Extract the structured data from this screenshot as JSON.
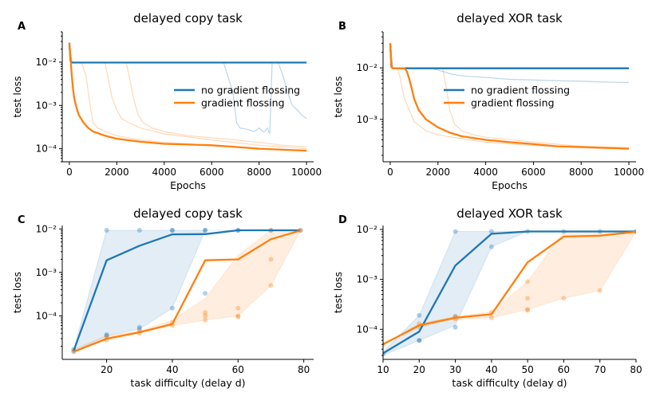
{
  "colors": {
    "blue": "#1f77b4",
    "orange": "#ff7f0e"
  },
  "chart_data": [
    {
      "panel": "A",
      "type": "line",
      "title": "delayed copy task",
      "xlabel": "Epochs",
      "ylabel": "test loss",
      "yscale": "log",
      "xlim": [
        -300,
        10300
      ],
      "ylim": [
        5e-05,
        0.05
      ],
      "xticks": [
        0,
        2000,
        4000,
        6000,
        8000,
        10000
      ],
      "xtick_labels": [
        "0",
        "2000",
        "4000",
        "6000",
        "8000",
        "10000"
      ],
      "yticks": [
        0.0001,
        0.001,
        0.01
      ],
      "ytick_labels": [
        "10⁻⁴",
        "10⁻³",
        "10⁻²"
      ],
      "legend": {
        "position": "right",
        "entries": [
          "no gradient flossing",
          "gradient flossing"
        ]
      },
      "series": [
        {
          "name": "no gradient flossing",
          "color": "blue",
          "role": "mean",
          "x": [
            0,
            50,
            100,
            2000,
            4000,
            6000,
            8000,
            10000
          ],
          "y": [
            0.028,
            0.0105,
            0.0098,
            0.0098,
            0.0098,
            0.0098,
            0.0098,
            0.0098
          ]
        },
        {
          "name": "no gradient flossing",
          "color": "blue",
          "role": "single run",
          "x": [
            0,
            100,
            6500,
            6900,
            7050,
            7200,
            7500,
            7800,
            8000,
            8200,
            8350,
            8450,
            8550,
            8650,
            10000
          ],
          "y": [
            0.025,
            0.0098,
            0.0098,
            0.002,
            0.0004,
            0.0003,
            0.00028,
            0.00025,
            0.0003,
            0.00024,
            0.0003,
            0.00022,
            0.0098,
            0.0098,
            0.0098
          ]
        },
        {
          "name": "no gradient flossing",
          "color": "blue",
          "role": "single run",
          "x": [
            0,
            100,
            8800,
            9000,
            9200,
            9400,
            9600,
            9800,
            10000
          ],
          "y": [
            0.025,
            0.0098,
            0.0098,
            0.005,
            0.002,
            0.001,
            0.0008,
            0.0006,
            0.0005
          ]
        },
        {
          "name": "gradient flossing",
          "color": "orange",
          "role": "mean",
          "x": [
            0,
            50,
            100,
            150,
            200,
            300,
            400,
            600,
            800,
            1000,
            1500,
            2000,
            3000,
            4000,
            5000,
            6000,
            7000,
            8000,
            9000,
            10000
          ],
          "y": [
            0.028,
            0.012,
            0.005,
            0.0025,
            0.0015,
            0.0009,
            0.0006,
            0.0004,
            0.0003,
            0.00025,
            0.0002,
            0.00017,
            0.000145,
            0.00013,
            0.000125,
            0.00012,
            0.00011,
            0.0001,
            9.5e-05,
            9e-05
          ]
        },
        {
          "name": "gradient flossing",
          "color": "orange",
          "role": "single run",
          "x": [
            0,
            100,
            500,
            700,
            800,
            900,
            1000,
            1200,
            1500,
            2000,
            3000,
            4000,
            6000,
            8000,
            10000
          ],
          "y": [
            0.025,
            0.0098,
            0.0098,
            0.005,
            0.002,
            0.0008,
            0.0004,
            0.0003,
            0.00025,
            0.0002,
            0.00016,
            0.00014,
            0.00012,
            0.0001,
            9e-05
          ]
        },
        {
          "name": "gradient flossing",
          "color": "orange",
          "role": "single run",
          "x": [
            0,
            100,
            1500,
            1650,
            1800,
            2000,
            2200,
            2500,
            3000,
            4000,
            6000,
            8000,
            10000
          ],
          "y": [
            0.025,
            0.0098,
            0.0098,
            0.004,
            0.0015,
            0.0008,
            0.0005,
            0.0004,
            0.0003,
            0.00022,
            0.00016,
            0.00012,
            0.0001
          ]
        },
        {
          "name": "gradient flossing",
          "color": "orange",
          "role": "single run",
          "x": [
            0,
            100,
            2400,
            2550,
            2700,
            2900,
            3100,
            3500,
            4000,
            5000,
            6000,
            7000,
            8000,
            9000,
            10000
          ],
          "y": [
            0.025,
            0.0098,
            0.0098,
            0.004,
            0.0015,
            0.0006,
            0.0004,
            0.0003,
            0.00025,
            0.0002,
            0.00018,
            0.00016,
            0.00014,
            0.00012,
            0.00011
          ]
        }
      ]
    },
    {
      "panel": "B",
      "type": "line",
      "title": "delayed XOR task",
      "xlabel": "Epochs",
      "ylabel": "test loss",
      "yscale": "log",
      "xlim": [
        -300,
        10300
      ],
      "ylim": [
        0.00015,
        0.05
      ],
      "xticks": [
        0,
        2000,
        4000,
        6000,
        8000,
        10000
      ],
      "xtick_labels": [
        "0",
        "2000",
        "4000",
        "6000",
        "8000",
        "10000"
      ],
      "yticks": [
        0.001,
        0.01
      ],
      "ytick_labels": [
        "10⁻³",
        "10⁻²"
      ],
      "legend": {
        "position": "right",
        "entries": [
          "no gradient flossing",
          "gradient flossing"
        ]
      },
      "series": [
        {
          "name": "no gradient flossing",
          "color": "blue",
          "role": "mean",
          "x": [
            0,
            50,
            100,
            2000,
            4000,
            6000,
            8000,
            10000
          ],
          "y": [
            0.03,
            0.0105,
            0.0098,
            0.0098,
            0.0098,
            0.0098,
            0.0098,
            0.0098
          ]
        },
        {
          "name": "no gradient flossing",
          "color": "blue",
          "role": "single run",
          "x": [
            0,
            100,
            1000,
            1800,
            2200,
            2600,
            3000,
            4000,
            5000,
            6000,
            7000,
            8000,
            9000,
            10000
          ],
          "y": [
            0.025,
            0.0098,
            0.0098,
            0.0096,
            0.0085,
            0.0075,
            0.007,
            0.0065,
            0.006,
            0.0058,
            0.0056,
            0.0055,
            0.0053,
            0.0052
          ]
        },
        {
          "name": "gradient flossing",
          "color": "orange",
          "role": "mean",
          "x": [
            0,
            50,
            100,
            600,
            700,
            800,
            900,
            1000,
            1200,
            1500,
            2000,
            2500,
            3000,
            4000,
            5000,
            6000,
            7000,
            8000,
            9000,
            10000
          ],
          "y": [
            0.03,
            0.0105,
            0.0098,
            0.0098,
            0.0085,
            0.006,
            0.004,
            0.0025,
            0.0015,
            0.001,
            0.0007,
            0.00055,
            0.00047,
            0.0004,
            0.00036,
            0.00033,
            0.0003,
            0.00029,
            0.00028,
            0.00027
          ]
        },
        {
          "name": "gradient flossing",
          "color": "orange",
          "role": "single run",
          "x": [
            0,
            100,
            300,
            400,
            500,
            600,
            800,
            1000,
            1500,
            2000,
            3000,
            4000,
            6000,
            8000,
            10000
          ],
          "y": [
            0.025,
            0.0098,
            0.0098,
            0.007,
            0.004,
            0.0025,
            0.0015,
            0.0009,
            0.0006,
            0.0005,
            0.00042,
            0.00036,
            0.00031,
            0.00028,
            0.00026
          ]
        },
        {
          "name": "gradient flossing",
          "color": "orange",
          "role": "single run",
          "x": [
            0,
            100,
            2200,
            2350,
            2500,
            2700,
            3000,
            3500,
            4000,
            6000,
            8000,
            10000
          ],
          "y": [
            0.025,
            0.0098,
            0.0098,
            0.004,
            0.0015,
            0.0008,
            0.0006,
            0.0005,
            0.00045,
            0.00036,
            0.0003,
            0.00028
          ]
        }
      ]
    },
    {
      "panel": "C",
      "type": "line",
      "title": "delayed copy task",
      "xlabel": "task difficulty (delay d)",
      "ylabel": "test loss",
      "yscale": "log",
      "xlim": [
        6.5,
        83
      ],
      "ylim": [
        1e-05,
        0.012
      ],
      "xticks": [
        20,
        40,
        60,
        80
      ],
      "xtick_labels": [
        "20",
        "40",
        "60",
        "80"
      ],
      "yticks": [
        0.0001,
        0.001,
        0.01
      ],
      "ytick_labels": [
        "10⁻⁴",
        "10⁻³",
        "10⁻²"
      ],
      "series": [
        {
          "name": "no gradient flossing",
          "color": "blue",
          "role": "median",
          "x": [
            10,
            20,
            30,
            40,
            50,
            60,
            70,
            79
          ],
          "y": [
            1.6e-05,
            0.0019,
            0.0041,
            0.0075,
            0.0076,
            0.0093,
            0.0093,
            0.0093
          ]
        },
        {
          "name": "no gradient flossing",
          "color": "blue",
          "role": "band",
          "x": [
            10,
            20,
            30,
            40,
            50,
            60,
            70,
            79
          ],
          "lower": [
            1.5e-05,
            3.5e-05,
            5e-05,
            0.00015,
            0.0093,
            0.0093,
            0.0093,
            0.0093
          ],
          "upper": [
            1.7e-05,
            0.0093,
            0.0093,
            0.0093,
            0.0093,
            0.0093,
            0.0093,
            0.0093
          ]
        },
        {
          "name": "no gradient flossing",
          "color": "blue",
          "role": "runs",
          "x": [
            10,
            10,
            20,
            20,
            20,
            30,
            30,
            30,
            40,
            40,
            40,
            50,
            50,
            50,
            60,
            60,
            70,
            79
          ],
          "y": [
            1.5e-05,
            1.7e-05,
            0.0093,
            3.5e-05,
            3.7e-05,
            0.0093,
            5.5e-05,
            5e-05,
            0.0093,
            0.00015,
            0.0093,
            0.0093,
            0.00033,
            0.0093,
            0.0093,
            0.0093,
            0.0093,
            0.0093
          ]
        },
        {
          "name": "gradient flossing",
          "color": "orange",
          "role": "median",
          "x": [
            10,
            20,
            30,
            40,
            50,
            60,
            70,
            79
          ],
          "y": [
            1.5e-05,
            3e-05,
            4.2e-05,
            6.5e-05,
            0.0019,
            0.002,
            0.0058,
            0.0092
          ]
        },
        {
          "name": "gradient flossing",
          "color": "orange",
          "role": "band",
          "x": [
            10,
            20,
            30,
            40,
            50,
            60,
            70,
            79
          ],
          "lower": [
            1.5e-05,
            2.8e-05,
            4e-05,
            6e-05,
            8e-05,
            0.0001,
            0.0005,
            0.0092
          ],
          "upper": [
            1.7e-05,
            3.5e-05,
            4.5e-05,
            8e-05,
            0.00025,
            0.0025,
            0.0093,
            0.0093
          ]
        },
        {
          "name": "gradient flossing",
          "color": "orange",
          "role": "runs",
          "x": [
            10,
            20,
            20,
            30,
            30,
            40,
            40,
            50,
            50,
            50,
            60,
            60,
            60,
            70,
            70,
            70,
            79
          ],
          "y": [
            1.6e-05,
            2.8e-05,
            3.2e-05,
            4e-05,
            4.5e-05,
            6e-05,
            7e-05,
            0.0001,
            0.00012,
            8e-05,
            0.00015,
            0.0001,
            9.5e-05,
            0.0093,
            0.002,
            0.0005,
            0.0092
          ]
        }
      ]
    },
    {
      "panel": "D",
      "type": "line",
      "title": "delayed XOR task",
      "xlabel": "task difficulty (delay d)",
      "ylabel": "test loss",
      "yscale": "log",
      "xlim": [
        10,
        80
      ],
      "ylim": [
        2.5e-05,
        0.012
      ],
      "xticks": [
        10,
        20,
        30,
        40,
        50,
        60,
        70,
        80
      ],
      "xtick_labels": [
        "10",
        "20",
        "30",
        "40",
        "50",
        "60",
        "70",
        "80"
      ],
      "yticks": [
        0.0001,
        0.001,
        0.01
      ],
      "ytick_labels": [
        "10⁻⁴",
        "10⁻³",
        "10⁻²"
      ],
      "series": [
        {
          "name": "no gradient flossing",
          "color": "blue",
          "role": "median",
          "x": [
            10,
            20,
            30,
            40,
            50,
            60,
            70,
            80
          ],
          "y": [
            3.3e-05,
            9e-05,
            0.0019,
            0.0082,
            0.0091,
            0.0091,
            0.0091,
            0.0091
          ]
        },
        {
          "name": "no gradient flossing",
          "color": "blue",
          "role": "band",
          "x": [
            10,
            20,
            30,
            40,
            50,
            60,
            70,
            80
          ],
          "lower": [
            3e-05,
            6e-05,
            0.00012,
            0.0045,
            0.0091,
            0.0091,
            0.0091,
            0.0091
          ],
          "upper": [
            3.5e-05,
            0.00019,
            0.0091,
            0.0091,
            0.0091,
            0.0091,
            0.0091,
            0.0091
          ]
        },
        {
          "name": "no gradient flossing",
          "color": "blue",
          "role": "runs",
          "x": [
            10,
            20,
            20,
            20,
            30,
            30,
            30,
            40,
            40,
            50,
            60,
            70,
            80
          ],
          "y": [
            3.2e-05,
            0.00019,
            6e-05,
            6e-05,
            0.0091,
            0.00018,
            0.00011,
            0.0091,
            0.0045,
            0.0091,
            0.0091,
            0.0091,
            0.0091
          ]
        },
        {
          "name": "gradient flossing",
          "color": "orange",
          "role": "median",
          "x": [
            10,
            20,
            30,
            40,
            50,
            60,
            70,
            80
          ],
          "y": [
            5e-05,
            0.00012,
            0.00017,
            0.0002,
            0.0022,
            0.0072,
            0.0075,
            0.009
          ]
        },
        {
          "name": "gradient flossing",
          "color": "orange",
          "role": "band",
          "x": [
            10,
            20,
            30,
            40,
            50,
            60,
            70,
            80
          ],
          "lower": [
            5e-05,
            0.00011,
            0.00016,
            0.00017,
            0.00025,
            0.00042,
            0.0006,
            0.009
          ],
          "upper": [
            5e-05,
            0.00013,
            0.00018,
            0.00022,
            0.0009,
            0.0091,
            0.0091,
            0.0091
          ]
        },
        {
          "name": "gradient flossing",
          "color": "orange",
          "role": "runs",
          "x": [
            10,
            20,
            20,
            30,
            30,
            40,
            40,
            50,
            50,
            50,
            50,
            60,
            70,
            80
          ],
          "y": [
            5e-05,
            0.00011,
            0.00013,
            0.00016,
            0.00018,
            0.00017,
            0.00022,
            0.0009,
            0.00042,
            0.00025,
            0.00024,
            0.00042,
            0.0006,
            0.009
          ]
        }
      ]
    }
  ]
}
